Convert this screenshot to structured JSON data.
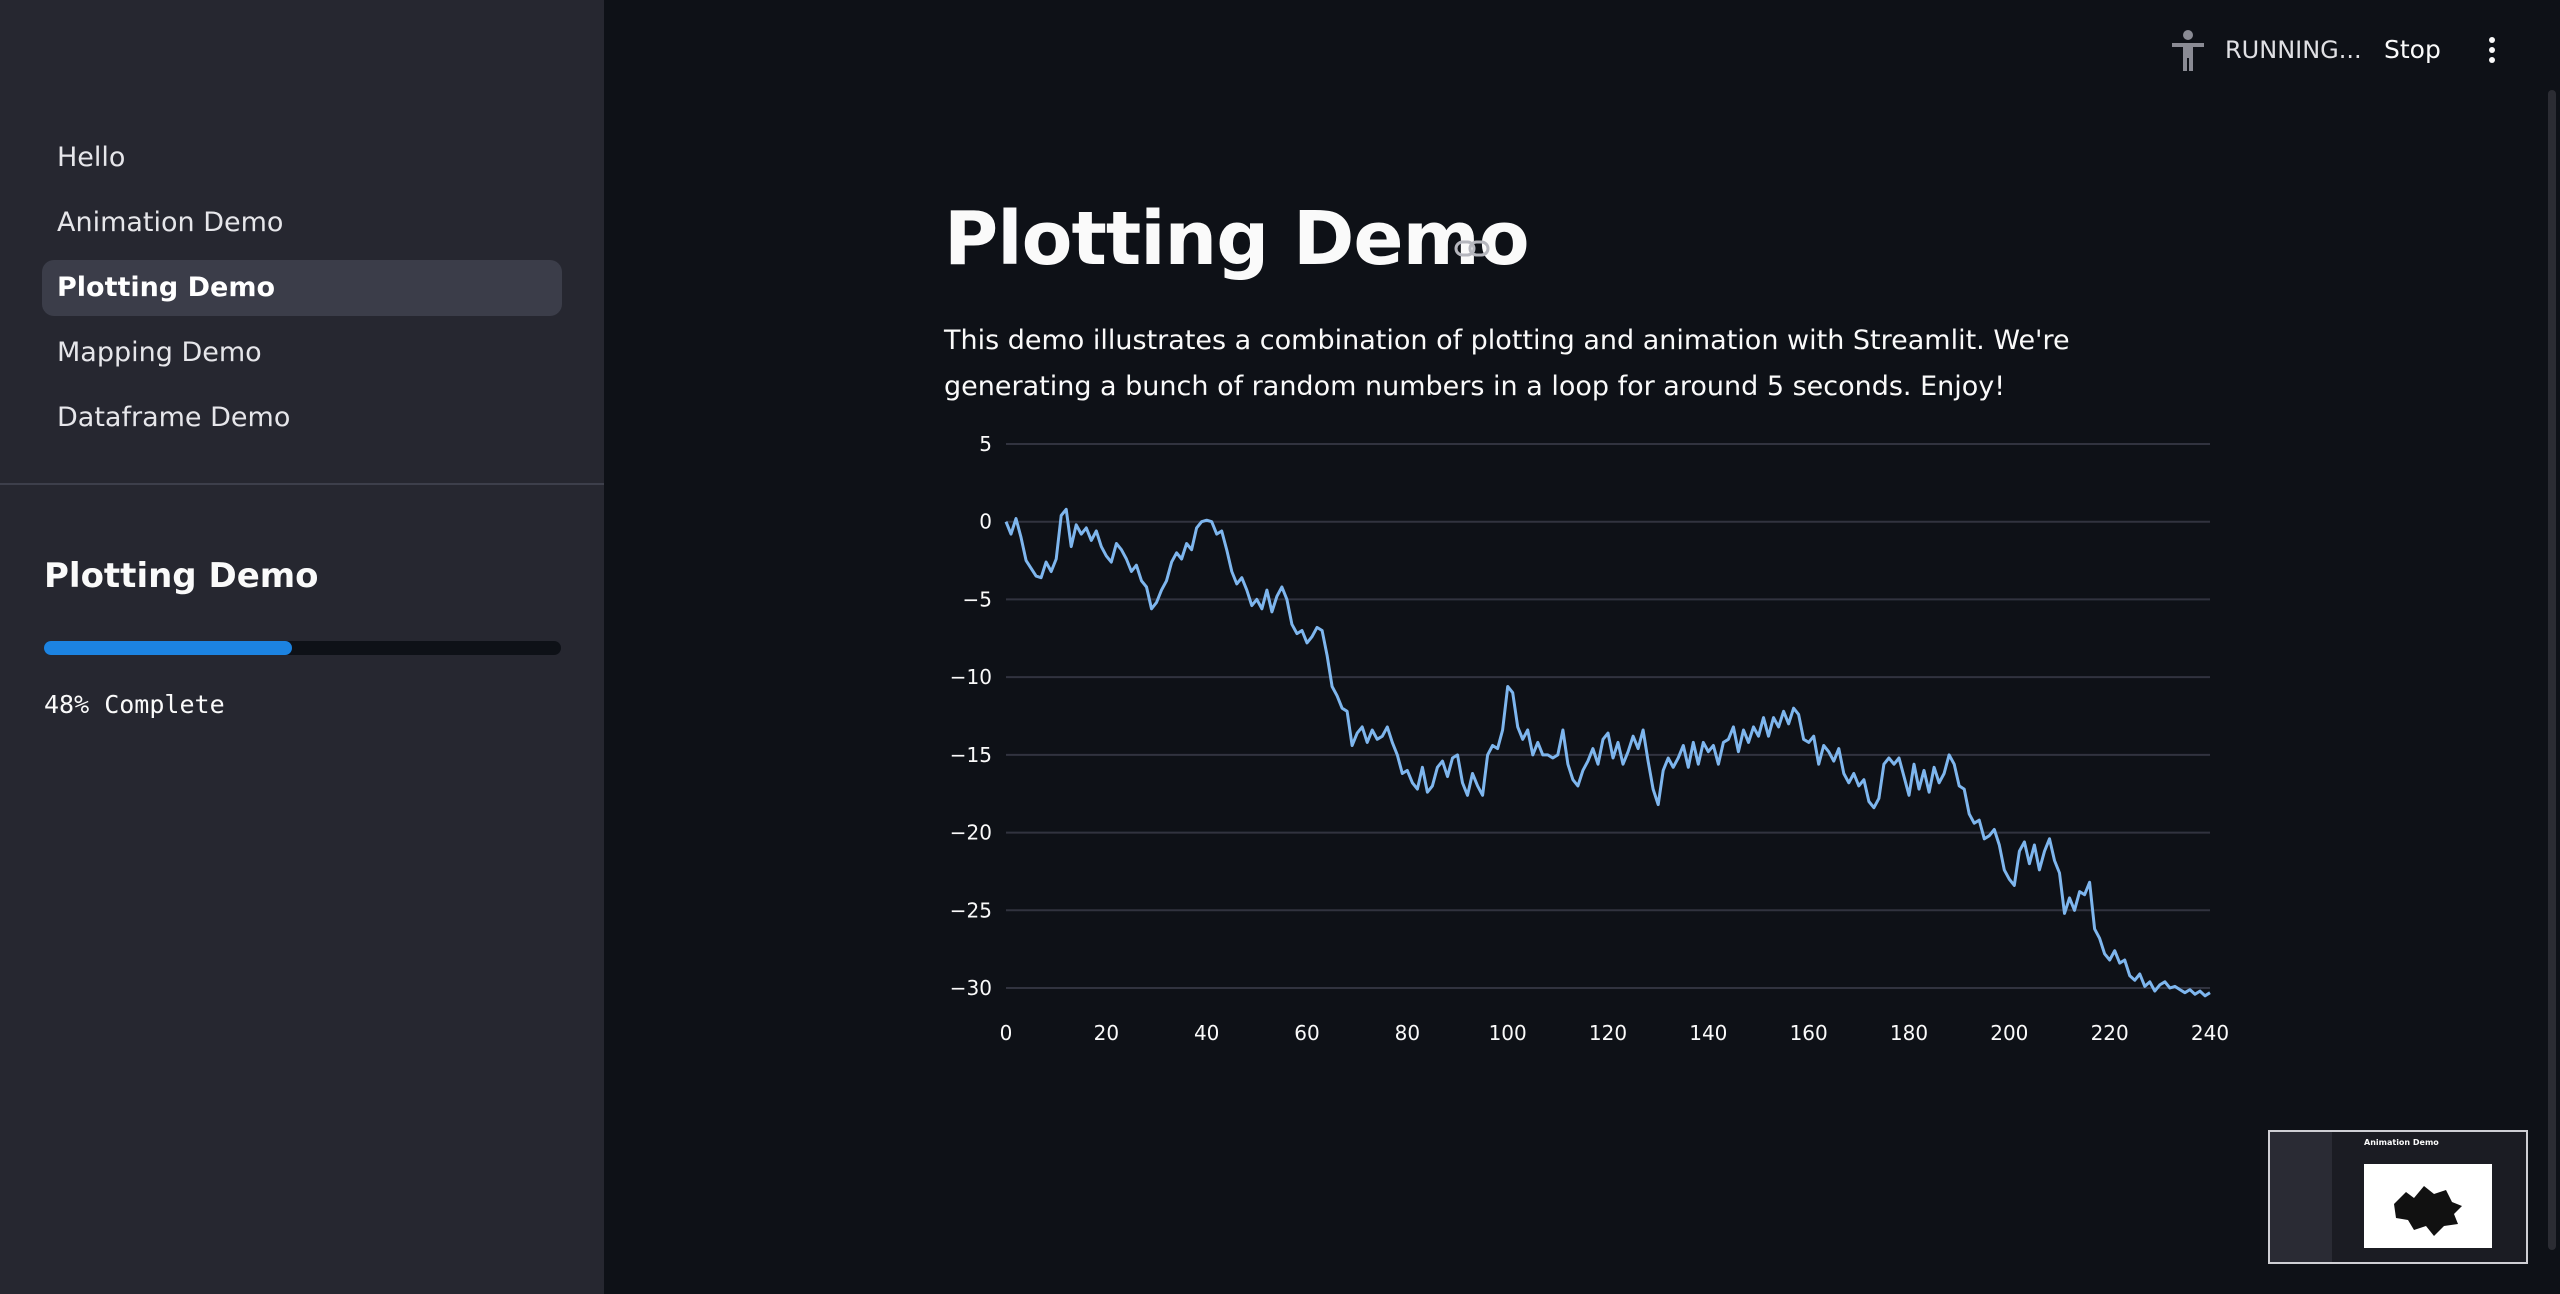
{
  "sidebar": {
    "nav": [
      {
        "label": "Hello",
        "active": false
      },
      {
        "label": "Animation Demo",
        "active": false
      },
      {
        "label": "Plotting Demo",
        "active": true
      },
      {
        "label": "Mapping Demo",
        "active": false
      },
      {
        "label": "Dataframe Demo",
        "active": false
      }
    ],
    "section_title": "Plotting Demo",
    "progress": {
      "percent": 48,
      "label": "48% Complete"
    }
  },
  "header": {
    "status": "RUNNING...",
    "stop_label": "Stop",
    "icons": [
      "running-man-icon",
      "kebab-menu-icon"
    ]
  },
  "main": {
    "title": "Plotting Demo",
    "description": "This demo illustrates a combination of plotting and animation with Streamlit. We're generating a bunch of random numbers in a loop for around 5 seconds. Enjoy!"
  },
  "colors": {
    "accent": "#1c83e1",
    "line": "#7eb6ee",
    "background": "#0e1117",
    "sidebar": "#262730"
  },
  "chart_data": {
    "type": "line",
    "xlim": [
      0,
      240
    ],
    "ylim": [
      -30,
      5
    ],
    "xticks": [
      0,
      20,
      40,
      60,
      80,
      100,
      120,
      140,
      160,
      180,
      200,
      220,
      240
    ],
    "yticks": [
      5,
      0,
      -5,
      -10,
      -15,
      -20,
      -25,
      -30
    ],
    "grid": true,
    "series": [
      {
        "keypoints": [
          [
            0,
            0
          ],
          [
            1,
            -0.8
          ],
          [
            2,
            0.2
          ],
          [
            3,
            -1
          ],
          [
            4,
            -2.5
          ],
          [
            5,
            -3
          ],
          [
            6,
            -3.5
          ],
          [
            7,
            -3.6
          ],
          [
            8,
            -2.6
          ],
          [
            9,
            -3.2
          ],
          [
            10,
            -2.4
          ],
          [
            11,
            0.4
          ],
          [
            12,
            0.8
          ],
          [
            13,
            -1.6
          ],
          [
            14,
            -0.2
          ],
          [
            15,
            -0.8
          ],
          [
            16,
            -0.4
          ],
          [
            17,
            -1.2
          ],
          [
            18,
            -0.6
          ],
          [
            19,
            -1.6
          ],
          [
            20,
            -2.2
          ],
          [
            21,
            -2.6
          ],
          [
            22,
            -1.4
          ],
          [
            23,
            -1.8
          ],
          [
            24,
            -2.4
          ],
          [
            25,
            -3.2
          ],
          [
            26,
            -2.8
          ],
          [
            27,
            -3.8
          ],
          [
            28,
            -4.2
          ],
          [
            29,
            -5.6
          ],
          [
            30,
            -5.2
          ],
          [
            31,
            -4.4
          ],
          [
            32,
            -3.8
          ],
          [
            33,
            -2.6
          ],
          [
            34,
            -2
          ],
          [
            35,
            -2.4
          ],
          [
            36,
            -1.4
          ],
          [
            37,
            -1.8
          ],
          [
            38,
            -0.4
          ],
          [
            39,
            0
          ],
          [
            40,
            0.1
          ],
          [
            41,
            0
          ],
          [
            42,
            -0.8
          ],
          [
            43,
            -0.6
          ],
          [
            44,
            -1.8
          ],
          [
            45,
            -3.2
          ],
          [
            46,
            -4
          ],
          [
            47,
            -3.6
          ],
          [
            48,
            -4.4
          ],
          [
            49,
            -5.4
          ],
          [
            50,
            -5
          ],
          [
            51,
            -5.6
          ],
          [
            52,
            -4.4
          ],
          [
            53,
            -5.8
          ],
          [
            54,
            -4.8
          ],
          [
            55,
            -4.2
          ],
          [
            56,
            -5
          ],
          [
            57,
            -6.6
          ],
          [
            58,
            -7.2
          ],
          [
            59,
            -7
          ],
          [
            60,
            -7.8
          ],
          [
            61,
            -7.4
          ],
          [
            62,
            -6.8
          ],
          [
            63,
            -7
          ],
          [
            64,
            -8.6
          ],
          [
            65,
            -10.6
          ],
          [
            66,
            -11.2
          ],
          [
            67,
            -12
          ],
          [
            68,
            -12.2
          ],
          [
            69,
            -14.4
          ],
          [
            70,
            -13.6
          ],
          [
            71,
            -13.2
          ],
          [
            72,
            -14.2
          ],
          [
            73,
            -13.4
          ],
          [
            74,
            -14
          ],
          [
            75,
            -13.8
          ],
          [
            76,
            -13.2
          ],
          [
            77,
            -14.2
          ],
          [
            78,
            -15
          ],
          [
            79,
            -16.2
          ],
          [
            80,
            -16
          ],
          [
            81,
            -16.8
          ],
          [
            82,
            -17.2
          ],
          [
            83,
            -15.8
          ],
          [
            84,
            -17.4
          ],
          [
            85,
            -17
          ],
          [
            86,
            -15.8
          ],
          [
            87,
            -15.4
          ],
          [
            88,
            -16.4
          ],
          [
            89,
            -15.2
          ],
          [
            90,
            -15
          ],
          [
            91,
            -16.8
          ],
          [
            92,
            -17.6
          ],
          [
            93,
            -16.2
          ],
          [
            94,
            -17
          ],
          [
            95,
            -17.6
          ],
          [
            96,
            -15
          ],
          [
            97,
            -14.4
          ],
          [
            98,
            -14.6
          ],
          [
            99,
            -13.4
          ],
          [
            100,
            -10.6
          ],
          [
            101,
            -11
          ],
          [
            102,
            -13.2
          ],
          [
            103,
            -14
          ],
          [
            104,
            -13.4
          ],
          [
            105,
            -15
          ],
          [
            106,
            -14.2
          ],
          [
            107,
            -15
          ],
          [
            108,
            -15
          ],
          [
            109,
            -15.2
          ],
          [
            110,
            -15
          ],
          [
            111,
            -13.4
          ],
          [
            112,
            -15.6
          ],
          [
            113,
            -16.6
          ],
          [
            114,
            -17
          ],
          [
            115,
            -16
          ],
          [
            116,
            -15.4
          ],
          [
            117,
            -14.6
          ],
          [
            118,
            -15.6
          ],
          [
            119,
            -14
          ],
          [
            120,
            -13.6
          ],
          [
            121,
            -15.2
          ],
          [
            122,
            -14.2
          ],
          [
            123,
            -15.6
          ],
          [
            124,
            -14.8
          ],
          [
            125,
            -13.8
          ],
          [
            126,
            -14.6
          ],
          [
            127,
            -13.4
          ],
          [
            128,
            -15.4
          ],
          [
            129,
            -17.2
          ],
          [
            130,
            -18.2
          ],
          [
            131,
            -16
          ],
          [
            132,
            -15.2
          ],
          [
            133,
            -15.8
          ],
          [
            134,
            -15.2
          ],
          [
            135,
            -14.4
          ],
          [
            136,
            -15.8
          ],
          [
            137,
            -14.2
          ],
          [
            138,
            -15.6
          ],
          [
            139,
            -14.2
          ],
          [
            140,
            -14.8
          ],
          [
            141,
            -14.4
          ],
          [
            142,
            -15.6
          ],
          [
            143,
            -14.2
          ],
          [
            144,
            -14
          ],
          [
            145,
            -13.2
          ],
          [
            146,
            -14.8
          ],
          [
            147,
            -13.4
          ],
          [
            148,
            -14.2
          ],
          [
            149,
            -13.2
          ],
          [
            150,
            -13.8
          ],
          [
            151,
            -12.6
          ],
          [
            152,
            -13.8
          ],
          [
            153,
            -12.6
          ],
          [
            154,
            -13.2
          ],
          [
            155,
            -12.2
          ],
          [
            156,
            -13
          ],
          [
            157,
            -12
          ],
          [
            158,
            -12.4
          ],
          [
            159,
            -14
          ],
          [
            160,
            -14.2
          ],
          [
            161,
            -13.8
          ],
          [
            162,
            -15.6
          ],
          [
            163,
            -14.4
          ],
          [
            164,
            -14.8
          ],
          [
            165,
            -15.4
          ],
          [
            166,
            -14.6
          ],
          [
            167,
            -16.2
          ],
          [
            168,
            -16.8
          ],
          [
            169,
            -16.2
          ],
          [
            170,
            -17
          ],
          [
            171,
            -16.6
          ],
          [
            172,
            -18
          ],
          [
            173,
            -18.4
          ],
          [
            174,
            -17.8
          ],
          [
            175,
            -15.6
          ],
          [
            176,
            -15.2
          ],
          [
            177,
            -15.6
          ],
          [
            178,
            -15.2
          ],
          [
            179,
            -16.4
          ],
          [
            180,
            -17.6
          ],
          [
            181,
            -15.6
          ],
          [
            182,
            -17.2
          ],
          [
            183,
            -16
          ],
          [
            184,
            -17.4
          ],
          [
            185,
            -15.8
          ],
          [
            186,
            -16.8
          ],
          [
            187,
            -16.2
          ],
          [
            188,
            -15
          ],
          [
            189,
            -15.6
          ],
          [
            190,
            -17
          ],
          [
            191,
            -17.2
          ],
          [
            192,
            -18.8
          ],
          [
            193,
            -19.4
          ],
          [
            194,
            -19.2
          ],
          [
            195,
            -20.4
          ],
          [
            196,
            -20.2
          ],
          [
            197,
            -19.8
          ],
          [
            198,
            -20.8
          ],
          [
            199,
            -22.4
          ],
          [
            200,
            -23
          ],
          [
            201,
            -23.4
          ],
          [
            202,
            -21.2
          ],
          [
            203,
            -20.6
          ],
          [
            204,
            -22
          ],
          [
            205,
            -20.8
          ],
          [
            206,
            -22.4
          ],
          [
            207,
            -21.2
          ],
          [
            208,
            -20.4
          ],
          [
            209,
            -21.8
          ],
          [
            210,
            -22.6
          ],
          [
            211,
            -25.2
          ],
          [
            212,
            -24.2
          ],
          [
            213,
            -25
          ],
          [
            214,
            -23.8
          ],
          [
            215,
            -24
          ],
          [
            216,
            -23.2
          ],
          [
            217,
            -26.2
          ],
          [
            218,
            -26.8
          ],
          [
            219,
            -27.8
          ],
          [
            220,
            -28.2
          ],
          [
            221,
            -27.6
          ],
          [
            222,
            -28.4
          ],
          [
            223,
            -28.2
          ],
          [
            224,
            -29.2
          ],
          [
            225,
            -29.5
          ],
          [
            226,
            -29.1
          ],
          [
            227,
            -29.9
          ],
          [
            228,
            -29.6
          ],
          [
            229,
            -30.2
          ],
          [
            230,
            -29.8
          ],
          [
            231,
            -29.6
          ],
          [
            232,
            -30
          ],
          [
            233,
            -29.9
          ],
          [
            234,
            -30.1
          ],
          [
            235,
            -30.3
          ],
          [
            236,
            -30.1
          ],
          [
            237,
            -30.4
          ],
          [
            238,
            -30.2
          ],
          [
            239,
            -30.5
          ],
          [
            240,
            -30.3
          ]
        ]
      }
    ]
  }
}
